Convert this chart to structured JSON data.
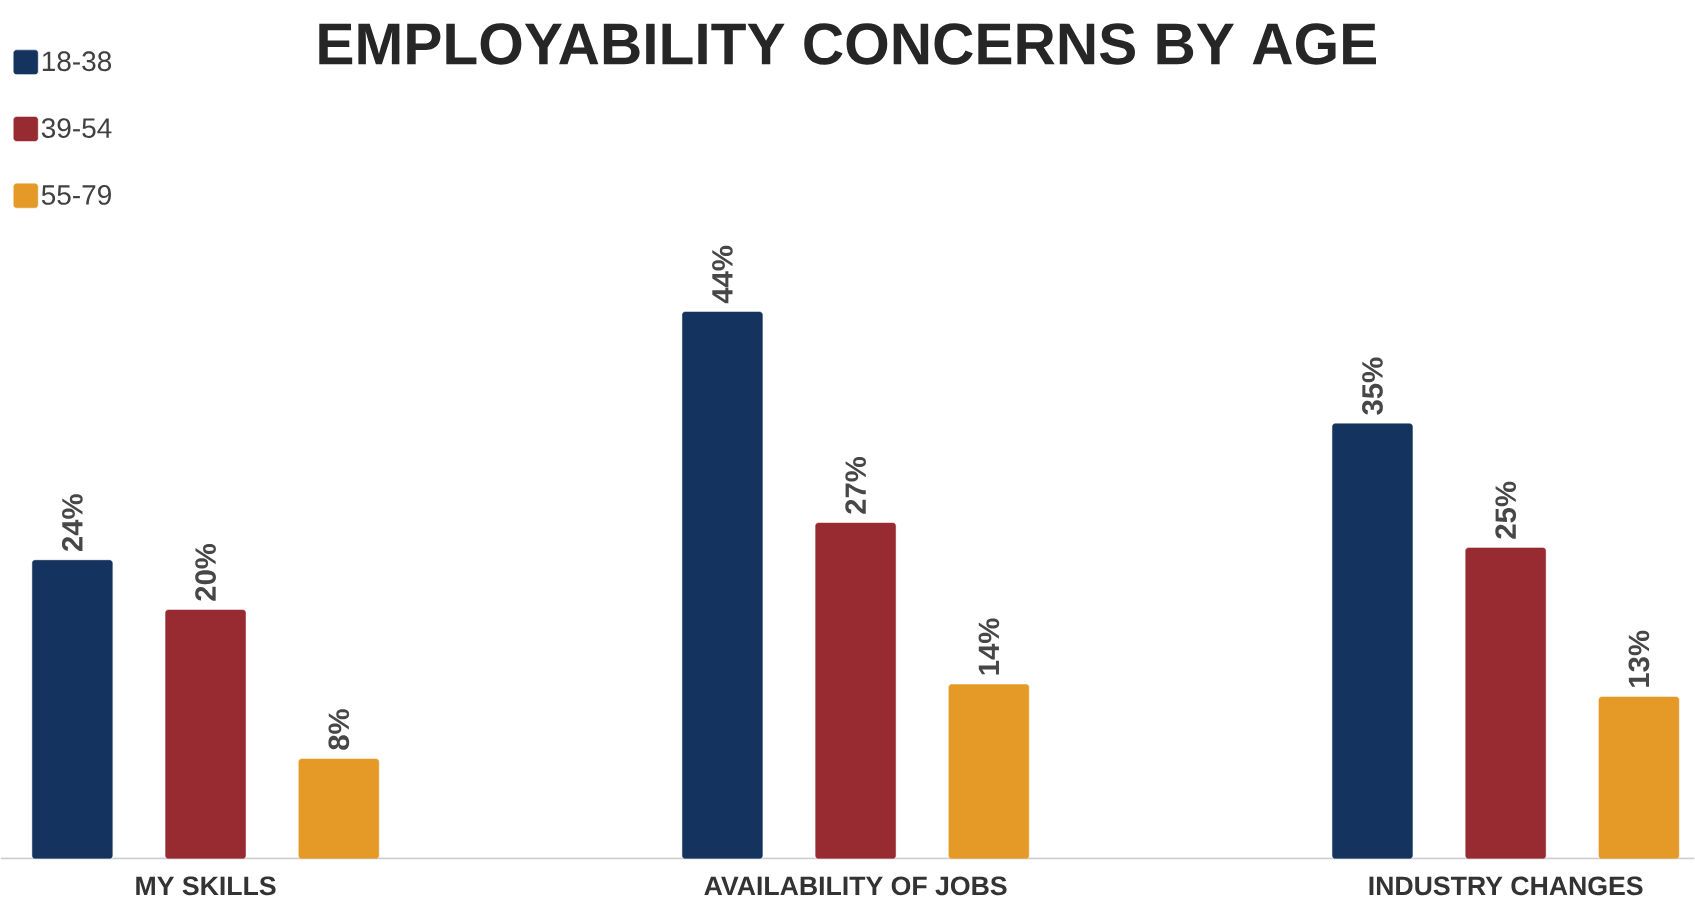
{
  "chart_data": {
    "type": "bar",
    "title": "EMPLOYABILITY CONCERNS BY AGE",
    "categories": [
      "MY SKILLS",
      "AVAILABILITY OF JOBS",
      "INDUSTRY CHANGES"
    ],
    "series": [
      {
        "name": "18-38",
        "color": "#14335e",
        "values": [
          24,
          44,
          35
        ],
        "value_labels": [
          "24%",
          "44%",
          "35%"
        ]
      },
      {
        "name": "39-54",
        "color": "#982a32",
        "values": [
          20,
          27,
          25
        ],
        "value_labels": [
          "20%",
          "27%",
          "25%"
        ]
      },
      {
        "name": "55-79",
        "color": "#e59a28",
        "values": [
          8,
          14,
          13
        ],
        "value_labels": [
          "8%",
          "14%",
          "13%"
        ]
      }
    ],
    "legend": "top left"
  }
}
